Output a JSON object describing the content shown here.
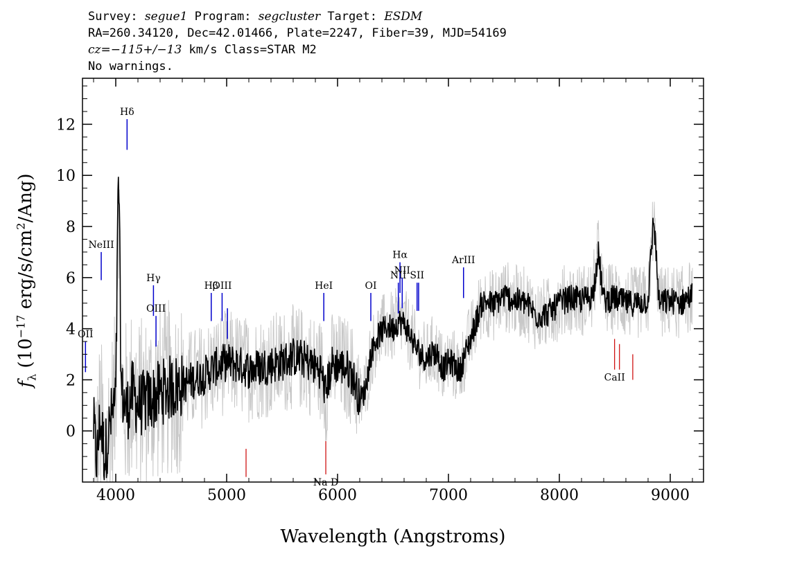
{
  "header": {
    "line1": {
      "survey_label": "Survey: ",
      "survey": "segue1",
      "program_label": " Program: ",
      "program": "segcluster",
      "target_label": " Target: ",
      "target": "ESDM"
    },
    "line2": "RA=260.34120, Dec=42.01466, Plate=2247, Fiber=39, MJD=54169",
    "line3": {
      "cz": "cz=",
      "value": "−115+/−13",
      "rest": " km/s Class=STAR M2"
    },
    "line4": "No warnings."
  },
  "chart_data": {
    "type": "line",
    "title": "",
    "xlabel": "Wavelength (Angstroms)",
    "ylabel_parts": {
      "f": "f",
      "sub": "λ",
      "open": " (10",
      "exp": "−17",
      "mid": " erg/s/cm",
      "exp2": "2",
      "close": "/Ang)"
    },
    "xlim": [
      3700,
      9300
    ],
    "ylim": [
      -2,
      13.8
    ],
    "xticks": [
      4000,
      5000,
      6000,
      7000,
      8000,
      9000
    ],
    "yticks": [
      0,
      2,
      4,
      6,
      8,
      10,
      12
    ],
    "colors": {
      "flux": "#000000",
      "error": "#c8c8c8",
      "emission": "#0000cc",
      "absorption": "#cc0000"
    },
    "series": [
      {
        "style": "smoothed flux",
        "x": [
          3800,
          3830,
          3860,
          3900,
          3950,
          4000,
          4025,
          4050,
          4100,
          4150,
          4200,
          4300,
          4400,
          4500,
          4600,
          4700,
          4800,
          4900,
          5000,
          5100,
          5200,
          5300,
          5400,
          5500,
          5600,
          5700,
          5800,
          5850,
          5890,
          5950,
          6000,
          6050,
          6100,
          6150,
          6200,
          6250,
          6300,
          6350,
          6400,
          6450,
          6500,
          6550,
          6600,
          6650,
          6700,
          6750,
          6800,
          6850,
          6900,
          6950,
          7000,
          7050,
          7100,
          7150,
          7200,
          7250,
          7300,
          7350,
          7400,
          7500,
          7600,
          7700,
          7800,
          7900,
          8000,
          8100,
          8200,
          8300,
          8350,
          8400,
          8500,
          8600,
          8700,
          8800,
          8850,
          8900,
          9000,
          9100,
          9150,
          9200
        ],
        "y": [
          0.2,
          -1.2,
          0.5,
          -1.0,
          0.3,
          1.2,
          10.5,
          1.5,
          0.8,
          1.5,
          1.0,
          1.2,
          1.5,
          1.7,
          1.8,
          2.0,
          2.2,
          2.5,
          2.7,
          2.6,
          2.4,
          2.5,
          2.6,
          2.7,
          2.9,
          2.8,
          2.5,
          2.4,
          1.5,
          2.6,
          2.6,
          2.5,
          2.4,
          2.0,
          1.2,
          1.6,
          3.0,
          3.6,
          3.9,
          4.1,
          4.0,
          4.3,
          4.2,
          3.8,
          3.3,
          3.0,
          2.8,
          3.1,
          3.0,
          2.4,
          2.7,
          2.6,
          2.3,
          3.0,
          3.6,
          4.3,
          5.0,
          5.1,
          4.9,
          5.3,
          5.1,
          5.0,
          4.5,
          4.6,
          5.0,
          5.2,
          5.1,
          5.3,
          7.0,
          5.1,
          5.2,
          5.0,
          5.0,
          5.1,
          8.4,
          5.0,
          5.1,
          5.0,
          5.2,
          5.3
        ]
      }
    ],
    "emission_lines": [
      {
        "label": "OII",
        "x": 3727,
        "top": 3.5,
        "bottom": 2.3
      },
      {
        "label": "NeIII",
        "x": 3869,
        "top": 7.0,
        "bottom": 5.9
      },
      {
        "label": "Hδ",
        "x": 4102,
        "top": 12.2,
        "bottom": 11.0
      },
      {
        "label": "Hγ",
        "x": 4340,
        "top": 5.7,
        "bottom": 4.5
      },
      {
        "label": "OIII",
        "x": 4363,
        "top": 4.5,
        "bottom": 3.3
      },
      {
        "label": "Hβ",
        "x": 4861,
        "top": 5.4,
        "bottom": 4.3
      },
      {
        "label": "OIII",
        "x": 4959,
        "top": 5.4,
        "bottom": 4.3
      },
      {
        "label": "",
        "x": 5007,
        "top": 4.8,
        "bottom": 3.6
      },
      {
        "label": "HeI",
        "x": 5876,
        "top": 5.4,
        "bottom": 4.3
      },
      {
        "label": "OI",
        "x": 6300,
        "top": 5.4,
        "bottom": 4.3
      },
      {
        "label": "NII",
        "x": 6548,
        "top": 5.8,
        "bottom": 4.6
      },
      {
        "label": "Hα",
        "x": 6563,
        "top": 6.6,
        "bottom": 5.4
      },
      {
        "label": "NII",
        "x": 6583,
        "top": 6.0,
        "bottom": 4.8
      },
      {
        "label": "SII",
        "x": 6717,
        "top": 5.8,
        "bottom": 4.7
      },
      {
        "label": "",
        "x": 6731,
        "top": 5.8,
        "bottom": 4.7
      },
      {
        "label": "ArIII",
        "x": 7136,
        "top": 6.4,
        "bottom": 5.2
      }
    ],
    "absorption_lines": [
      {
        "label": "",
        "x": 5175,
        "top": -0.7,
        "bottom": -1.8
      },
      {
        "label": "Na D",
        "x": 5894,
        "top": -0.4,
        "bottom": -1.7
      },
      {
        "label": "CaII",
        "x": 8498,
        "top": 3.6,
        "bottom": 2.4
      },
      {
        "label": "",
        "x": 8542,
        "top": 3.4,
        "bottom": 2.4
      },
      {
        "label": "",
        "x": 8662,
        "top": 3.0,
        "bottom": 2.0
      }
    ]
  }
}
